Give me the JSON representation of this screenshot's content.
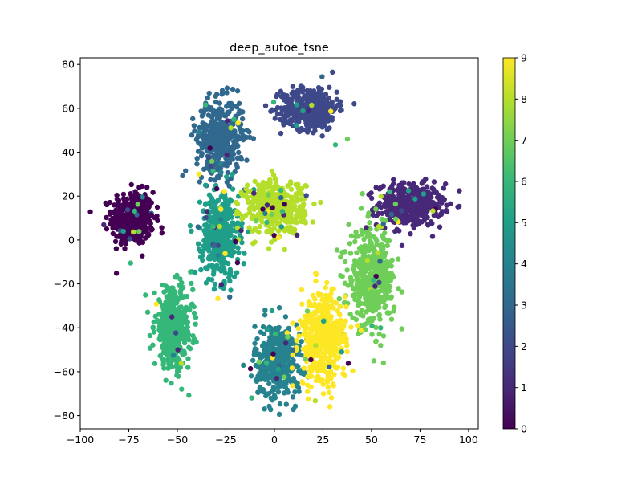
{
  "chart_data": {
    "type": "scatter",
    "title": "deep_autoe_tsne",
    "xlabel": "",
    "ylabel": "",
    "xlim": [
      -100,
      105
    ],
    "ylim": [
      -86,
      83
    ],
    "x_ticks": [
      -100,
      -75,
      -50,
      -25,
      0,
      25,
      50,
      75,
      100
    ],
    "y_ticks": [
      -80,
      -60,
      -40,
      -20,
      0,
      20,
      40,
      60,
      80
    ],
    "grid": false,
    "colorbar": {
      "colormap": "viridis",
      "range": [
        0,
        9
      ],
      "ticks": [
        0,
        1,
        2,
        3,
        4,
        5,
        6,
        7,
        8,
        9
      ]
    },
    "clusters": [
      {
        "label": 0,
        "center": [
          -73,
          10
        ],
        "spread": [
          9,
          10
        ]
      },
      {
        "label": 1,
        "center": [
          70,
          16
        ],
        "spread": [
          14,
          8
        ]
      },
      {
        "label": 2,
        "center": [
          18,
          60
        ],
        "spread": [
          12,
          8
        ]
      },
      {
        "label": 3,
        "center": [
          -28,
          47
        ],
        "spread": [
          10,
          14
        ]
      },
      {
        "label": 4,
        "center": [
          2,
          -55
        ],
        "spread": [
          10,
          14
        ]
      },
      {
        "label": 5,
        "center": [
          -28,
          2
        ],
        "spread": [
          8,
          16
        ]
      },
      {
        "label": 6,
        "center": [
          -52,
          -40
        ],
        "spread": [
          8,
          15
        ]
      },
      {
        "label": 7,
        "center": [
          50,
          -18
        ],
        "spread": [
          10,
          18
        ]
      },
      {
        "label": 8,
        "center": [
          0,
          15
        ],
        "spread": [
          13,
          10
        ]
      },
      {
        "label": 9,
        "center": [
          25,
          -45
        ],
        "spread": [
          10,
          18
        ]
      }
    ],
    "points_per_cluster": 420,
    "palette": [
      "#440154",
      "#482878",
      "#3e4989",
      "#31688e",
      "#26828e",
      "#1f9e89",
      "#35b779",
      "#6ece58",
      "#b5de2b",
      "#fde725"
    ]
  }
}
